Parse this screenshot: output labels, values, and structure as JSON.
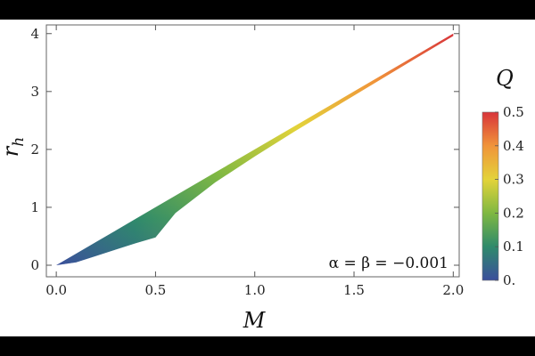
{
  "chart_data": {
    "type": "area",
    "xlabel": "M",
    "ylabel": "r",
    "ylabel_subscript": "h",
    "xlim": [
      -0.05,
      2.03
    ],
    "ylim": [
      -0.2,
      4.15
    ],
    "x_ticks": [
      0.0,
      0.5,
      1.0,
      1.5,
      2.0
    ],
    "x_tick_labels": [
      "0.0",
      "0.5",
      "1.0",
      "1.5",
      "2.0"
    ],
    "y_ticks": [
      0,
      1,
      2,
      3,
      4
    ],
    "y_tick_labels": [
      "0",
      "1",
      "2",
      "3",
      "4"
    ],
    "annotation": "α = β = −0.001",
    "colorbar": {
      "title": "Q",
      "range": [
        0,
        0.5
      ],
      "ticks": [
        0,
        0.1,
        0.2,
        0.3,
        0.4,
        0.5
      ],
      "tick_labels": [
        "0.",
        "0.1",
        "0.2",
        "0.3",
        "0.4",
        "0.5"
      ],
      "colors": [
        "#3b4f9c",
        "#2f8a6b",
        "#7fb842",
        "#e3d33a",
        "#f0943a",
        "#d8343a"
      ]
    },
    "series": [
      {
        "x": [
          0.0,
          0.1,
          0.2,
          0.3,
          0.4,
          0.5,
          0.6,
          0.8,
          1.0,
          1.2,
          1.5,
          1.8,
          2.0
        ],
        "upper": [
          0.0,
          0.2,
          0.4,
          0.6,
          0.8,
          1.0,
          1.2,
          1.6,
          2.0,
          2.4,
          3.0,
          3.6,
          4.0
        ],
        "lower": [
          0.0,
          0.05,
          0.16,
          0.27,
          0.38,
          0.48,
          0.9,
          1.43,
          1.88,
          2.31,
          2.93,
          3.55,
          3.96
        ]
      }
    ]
  }
}
